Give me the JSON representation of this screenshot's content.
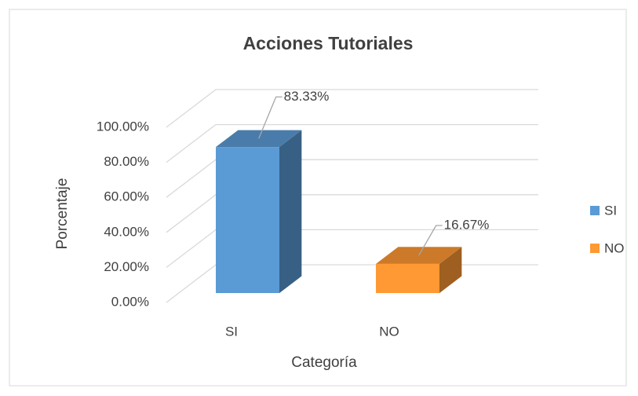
{
  "chart_data": {
    "type": "bar3d",
    "title": "Acciones Tutoriales",
    "x_label": "Categoría",
    "y_label": "Porcentaje",
    "categories": [
      "SI",
      "NO"
    ],
    "values": [
      83.33,
      16.67
    ],
    "value_labels": [
      "83.33%",
      "16.67%"
    ],
    "colors": [
      "#5b9bd5",
      "#ff9933"
    ],
    "ylim": [
      0,
      100
    ],
    "yticks": [
      {
        "value": 0,
        "label": "0.00%"
      },
      {
        "value": 20,
        "label": "20.00%"
      },
      {
        "value": 40,
        "label": "40.00%"
      },
      {
        "value": 60,
        "label": "60.00%"
      },
      {
        "value": 80,
        "label": "80.00%"
      },
      {
        "value": 100,
        "label": "100.00%"
      }
    ],
    "grid": true,
    "legend": "right"
  }
}
